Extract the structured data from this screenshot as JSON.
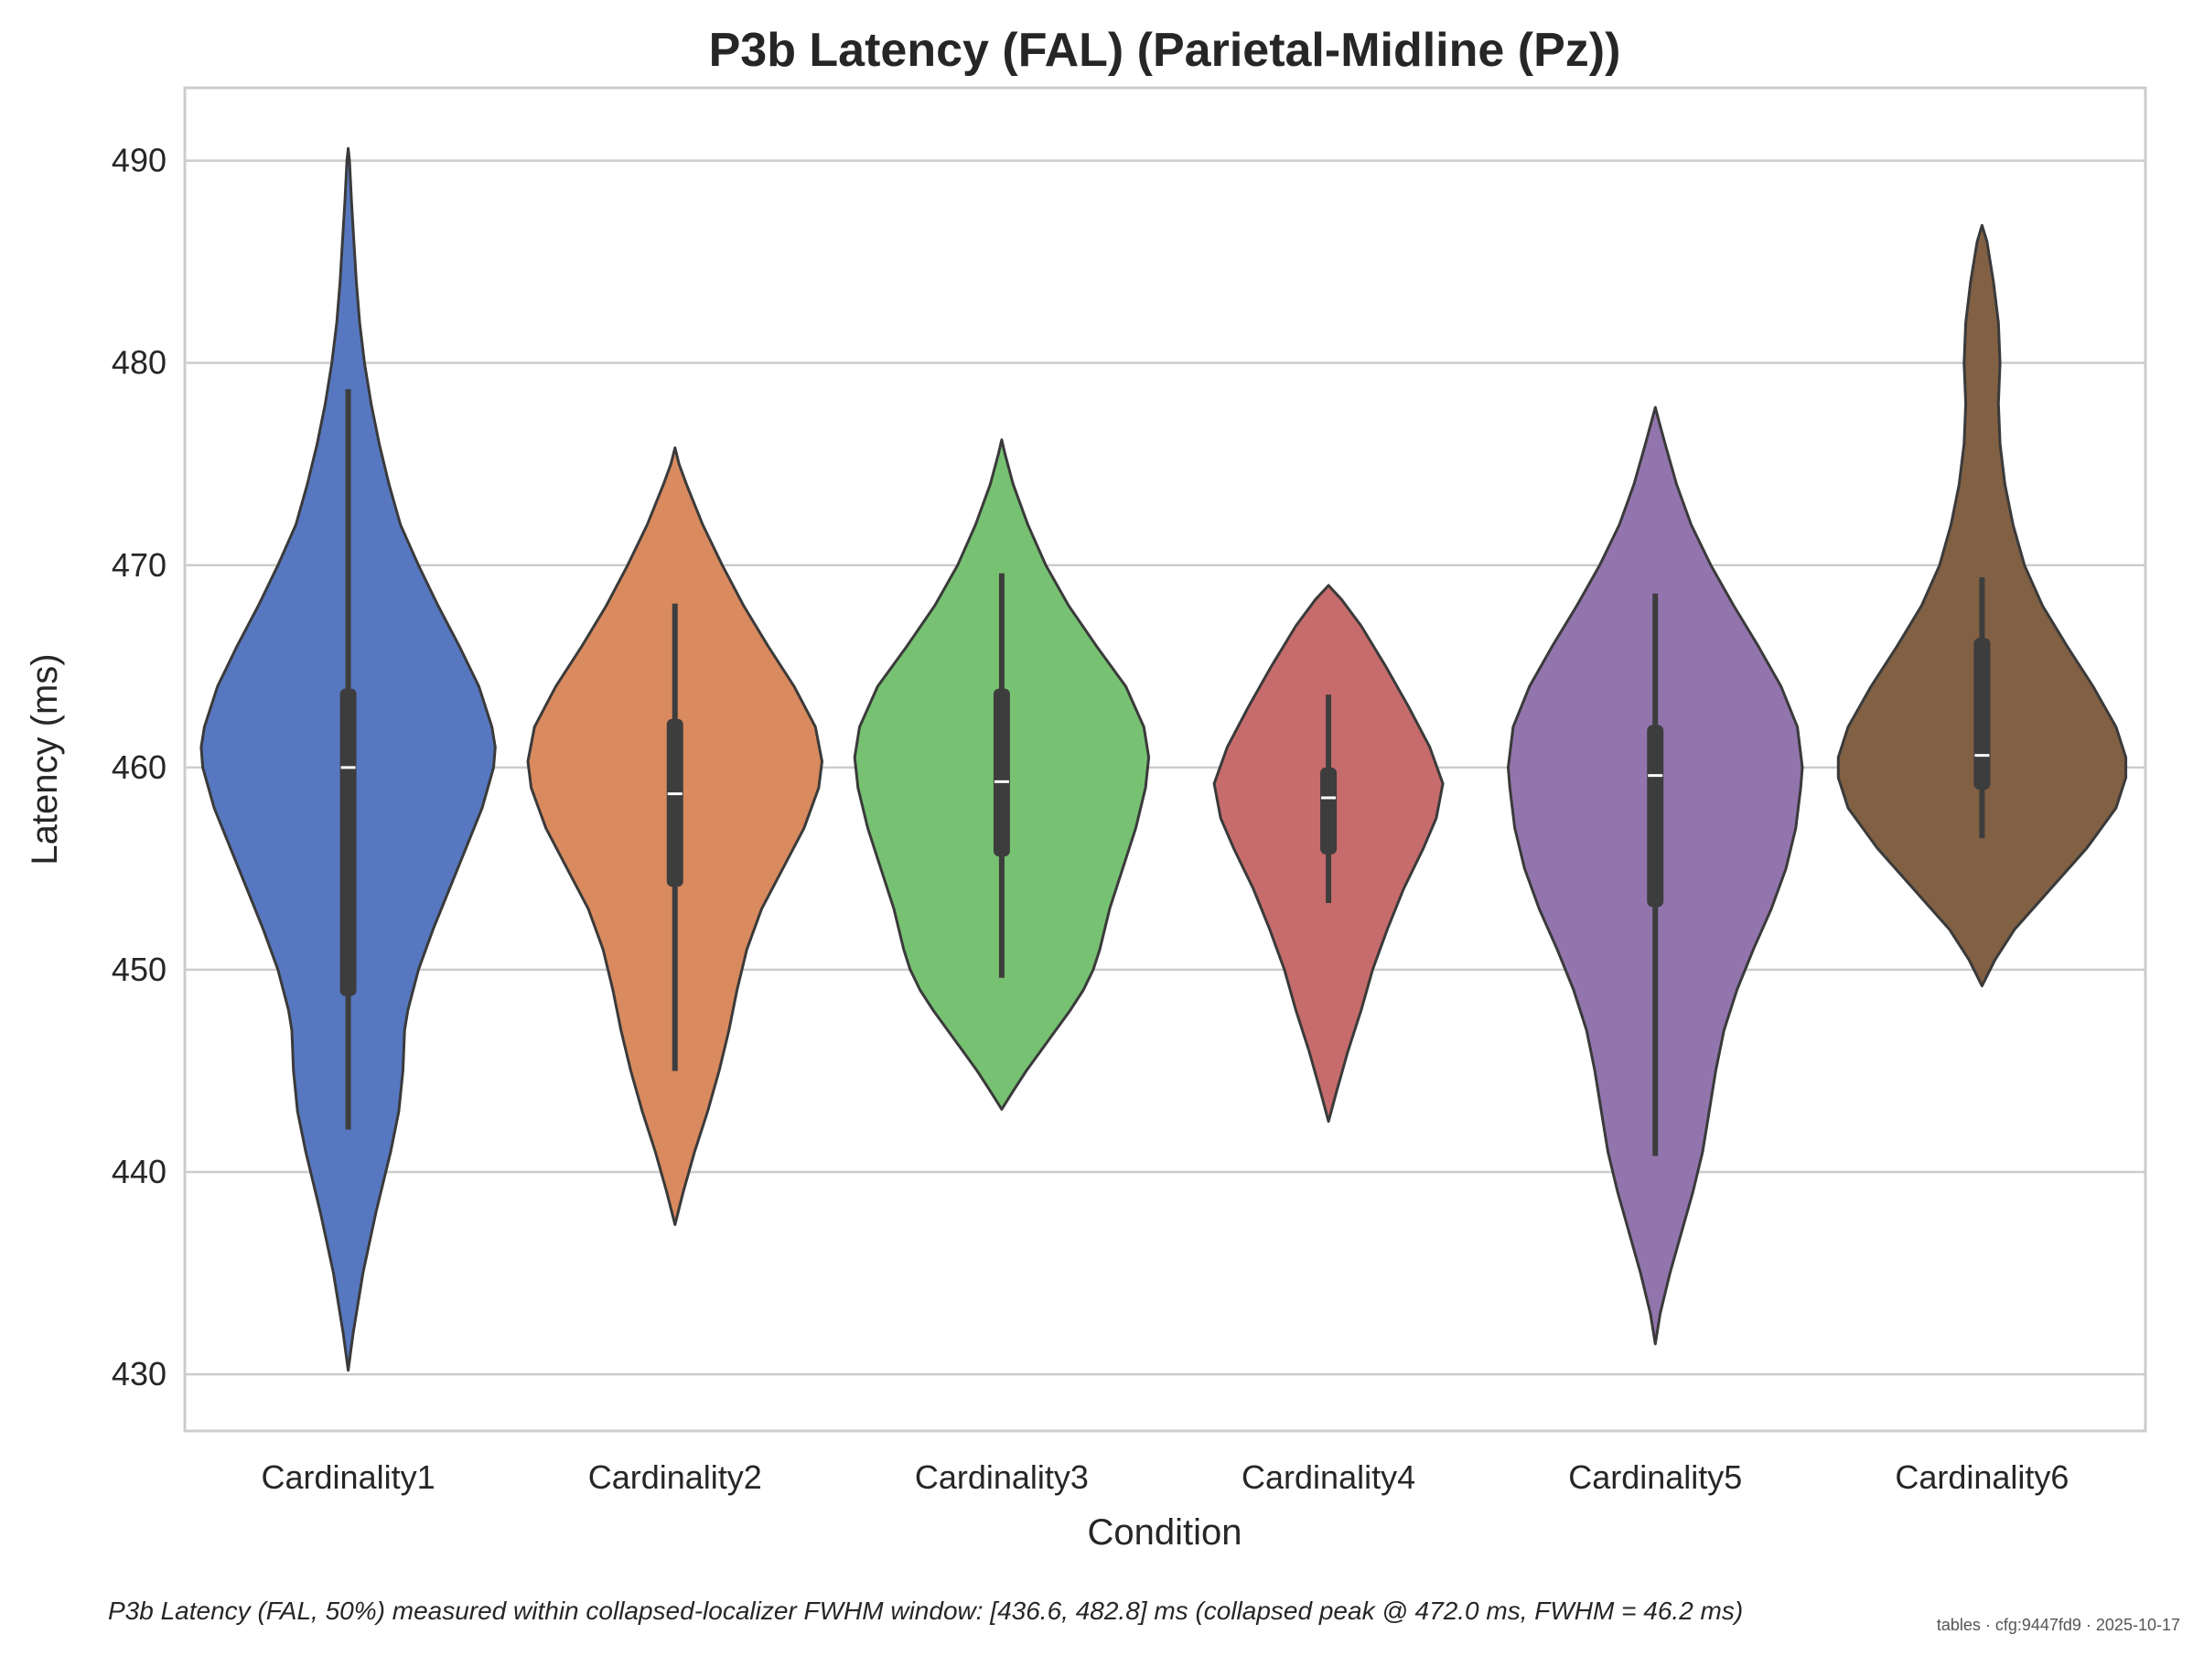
{
  "chart_data": {
    "type": "violin",
    "title": "P3b Latency (FAL) (Parietal-Midline (Pz))",
    "xlabel": "Condition",
    "ylabel": "Latency (ms)",
    "ylim": [
      427.2,
      493.6
    ],
    "yticks": [
      "430",
      "440",
      "450",
      "460",
      "470",
      "480",
      "490"
    ],
    "grid": "horizontal",
    "categories": [
      "Cardinality1",
      "Cardinality2",
      "Cardinality3",
      "Cardinality4",
      "Cardinality5",
      "Cardinality6"
    ],
    "colors": [
      "#5778c0",
      "#d98a5f",
      "#77c272",
      "#c76c6c",
      "#9375ae",
      "#816044"
    ],
    "violins": [
      {
        "name": "Cardinality1",
        "min": 430.2,
        "max": 490.6,
        "median": 460.0,
        "q1": 448.7,
        "q3": 463.9,
        "whisker_low": 442.1,
        "whisker_high": 478.7,
        "profile": [
          [
            430.2,
            0.0
          ],
          [
            432,
            0.03
          ],
          [
            435,
            0.09
          ],
          [
            438,
            0.17
          ],
          [
            441,
            0.26
          ],
          [
            443,
            0.31
          ],
          [
            445,
            0.335
          ],
          [
            446,
            0.34
          ],
          [
            447,
            0.345
          ],
          [
            448,
            0.365
          ],
          [
            450,
            0.43
          ],
          [
            452,
            0.52
          ],
          [
            454,
            0.62
          ],
          [
            456,
            0.72
          ],
          [
            458,
            0.82
          ],
          [
            460,
            0.89
          ],
          [
            461,
            0.9
          ],
          [
            462,
            0.88
          ],
          [
            464,
            0.8
          ],
          [
            466,
            0.68
          ],
          [
            468,
            0.55
          ],
          [
            470,
            0.43
          ],
          [
            472,
            0.32
          ],
          [
            474,
            0.25
          ],
          [
            476,
            0.19
          ],
          [
            478,
            0.14
          ],
          [
            480,
            0.1
          ],
          [
            482,
            0.07
          ],
          [
            484,
            0.05
          ],
          [
            486,
            0.035
          ],
          [
            488,
            0.02
          ],
          [
            490,
            0.008
          ],
          [
            490.6,
            0.0
          ]
        ]
      },
      {
        "name": "Cardinality2",
        "min": 437.4,
        "max": 475.8,
        "median": 458.7,
        "q1": 454.1,
        "q3": 462.4,
        "whisker_low": 445.0,
        "whisker_high": 468.1,
        "profile": [
          [
            437.4,
            0.0
          ],
          [
            439,
            0.05
          ],
          [
            441,
            0.12
          ],
          [
            443,
            0.2
          ],
          [
            445,
            0.27
          ],
          [
            447,
            0.33
          ],
          [
            449,
            0.38
          ],
          [
            451,
            0.44
          ],
          [
            453,
            0.53
          ],
          [
            455,
            0.66
          ],
          [
            457,
            0.79
          ],
          [
            459,
            0.88
          ],
          [
            460.3,
            0.9
          ],
          [
            462,
            0.86
          ],
          [
            464,
            0.73
          ],
          [
            466,
            0.57
          ],
          [
            468,
            0.42
          ],
          [
            470,
            0.29
          ],
          [
            472,
            0.17
          ],
          [
            474,
            0.07
          ],
          [
            475,
            0.025
          ],
          [
            475.8,
            0.0
          ]
        ]
      },
      {
        "name": "Cardinality3",
        "min": 443.1,
        "max": 476.2,
        "median": 459.3,
        "q1": 455.6,
        "q3": 463.9,
        "whisker_low": 449.6,
        "whisker_high": 469.6,
        "profile": [
          [
            443.1,
            0.0
          ],
          [
            444,
            0.07
          ],
          [
            445,
            0.15
          ],
          [
            446,
            0.24
          ],
          [
            447,
            0.33
          ],
          [
            448,
            0.42
          ],
          [
            449,
            0.5
          ],
          [
            450,
            0.56
          ],
          [
            451,
            0.6
          ],
          [
            453,
            0.66
          ],
          [
            455,
            0.74
          ],
          [
            457,
            0.82
          ],
          [
            459,
            0.88
          ],
          [
            460.5,
            0.9
          ],
          [
            462,
            0.87
          ],
          [
            464,
            0.76
          ],
          [
            466,
            0.58
          ],
          [
            468,
            0.41
          ],
          [
            470,
            0.27
          ],
          [
            472,
            0.16
          ],
          [
            474,
            0.07
          ],
          [
            475.5,
            0.02
          ],
          [
            476.2,
            0.0
          ]
        ]
      },
      {
        "name": "Cardinality4",
        "min": 442.5,
        "max": 469.0,
        "median": 458.5,
        "q1": 455.7,
        "q3": 460.0,
        "whisker_low": 453.3,
        "whisker_high": 463.6,
        "profile": [
          [
            442.5,
            0.0
          ],
          [
            444,
            0.05
          ],
          [
            446,
            0.12
          ],
          [
            448,
            0.2
          ],
          [
            450,
            0.27
          ],
          [
            452,
            0.36
          ],
          [
            454,
            0.46
          ],
          [
            456,
            0.58
          ],
          [
            457.5,
            0.66
          ],
          [
            459.2,
            0.7
          ],
          [
            461,
            0.62
          ],
          [
            463,
            0.49
          ],
          [
            465,
            0.35
          ],
          [
            467,
            0.2
          ],
          [
            468.3,
            0.08
          ],
          [
            469.0,
            0.0
          ]
        ]
      },
      {
        "name": "Cardinality5",
        "min": 431.5,
        "max": 477.8,
        "median": 459.6,
        "q1": 453.1,
        "q3": 462.1,
        "whisker_low": 440.8,
        "whisker_high": 468.6,
        "profile": [
          [
            431.5,
            0.0
          ],
          [
            433,
            0.03
          ],
          [
            435,
            0.09
          ],
          [
            437,
            0.16
          ],
          [
            439,
            0.23
          ],
          [
            441,
            0.29
          ],
          [
            443,
            0.33
          ],
          [
            445,
            0.37
          ],
          [
            447,
            0.42
          ],
          [
            449,
            0.5
          ],
          [
            451,
            0.6
          ],
          [
            453,
            0.71
          ],
          [
            455,
            0.8
          ],
          [
            457,
            0.86
          ],
          [
            459,
            0.89
          ],
          [
            460,
            0.9
          ],
          [
            462,
            0.87
          ],
          [
            464,
            0.77
          ],
          [
            466,
            0.63
          ],
          [
            468,
            0.48
          ],
          [
            470,
            0.34
          ],
          [
            472,
            0.22
          ],
          [
            474,
            0.13
          ],
          [
            476,
            0.06
          ],
          [
            477.2,
            0.02
          ],
          [
            477.8,
            0.0
          ]
        ]
      },
      {
        "name": "Cardinality6",
        "min": 449.2,
        "max": 486.8,
        "median": 460.6,
        "q1": 458.9,
        "q3": 466.4,
        "whisker_low": 456.5,
        "whisker_high": 469.4,
        "profile": [
          [
            449.2,
            0.0
          ],
          [
            450.5,
            0.08
          ],
          [
            452,
            0.2
          ],
          [
            454,
            0.42
          ],
          [
            456,
            0.64
          ],
          [
            458,
            0.82
          ],
          [
            459.5,
            0.88
          ],
          [
            460.5,
            0.88
          ],
          [
            462,
            0.82
          ],
          [
            464,
            0.68
          ],
          [
            466,
            0.52
          ],
          [
            468,
            0.37
          ],
          [
            470,
            0.26
          ],
          [
            472,
            0.19
          ],
          [
            474,
            0.14
          ],
          [
            476,
            0.11
          ],
          [
            478,
            0.1
          ],
          [
            480,
            0.11
          ],
          [
            482,
            0.1
          ],
          [
            484,
            0.07
          ],
          [
            486,
            0.03
          ],
          [
            486.8,
            0.0
          ]
        ]
      }
    ],
    "caption": "P3b Latency (FAL, 50%) measured within collapsed-localizer FWHM window: [436.6, 482.8] ms (collapsed peak @ 472.0 ms, FWHM = 46.2 ms)",
    "stamp": "tables · cfg:9447fd9 · 2025-10-17"
  }
}
